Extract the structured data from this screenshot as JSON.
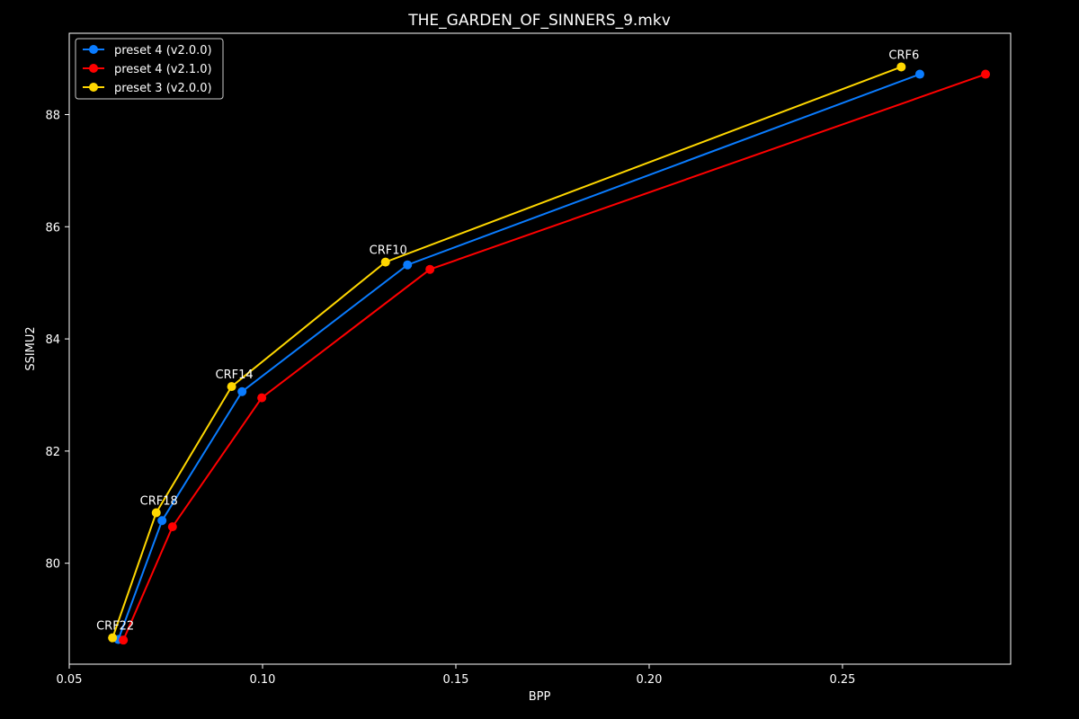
{
  "chart_data": {
    "type": "line",
    "title": "THE_GARDEN_OF_SINNERS_9.mkv",
    "xlabel": "BPP",
    "ylabel": "SSIMU2",
    "xlim": [
      0.05,
      0.2935
    ],
    "ylim": [
      78.2,
      89.45
    ],
    "xticks": [
      0.05,
      0.1,
      0.15,
      0.2,
      0.25
    ],
    "xtick_labels": [
      "0.05",
      "0.10",
      "0.15",
      "0.20",
      "0.25"
    ],
    "yticks": [
      80,
      82,
      84,
      86,
      88
    ],
    "ytick_labels": [
      "80",
      "82",
      "84",
      "86",
      "88"
    ],
    "grid": false,
    "legend_position": "top-left",
    "background": "#000000",
    "foreground": "#ffffff",
    "series": [
      {
        "name": "preset 4 (v2.0.0)",
        "color": "#0a7cff",
        "x": [
          0.0627,
          0.074,
          0.0947,
          0.1375,
          0.27
        ],
        "y": [
          78.64,
          80.76,
          83.06,
          85.32,
          88.72
        ]
      },
      {
        "name": "preset 4 (v2.1.0)",
        "color": "#ff0000",
        "x": [
          0.064,
          0.0767,
          0.0998,
          0.1433,
          0.287
        ],
        "y": [
          78.63,
          80.65,
          82.95,
          85.24,
          88.72
        ]
      },
      {
        "name": "preset 3 (v2.0.0)",
        "color": "#ffd700",
        "x": [
          0.0612,
          0.0725,
          0.092,
          0.1318,
          0.2652
        ],
        "y": [
          78.67,
          80.9,
          83.15,
          85.37,
          88.85
        ]
      }
    ],
    "annotations": [
      {
        "text": "CRF22",
        "x": 0.0612,
        "y": 78.67
      },
      {
        "text": "CRF18",
        "x": 0.0725,
        "y": 80.9
      },
      {
        "text": "CRF14",
        "x": 0.092,
        "y": 83.15
      },
      {
        "text": "CRF10",
        "x": 0.1318,
        "y": 85.37
      },
      {
        "text": "CRF6",
        "x": 0.2652,
        "y": 88.85
      }
    ]
  }
}
